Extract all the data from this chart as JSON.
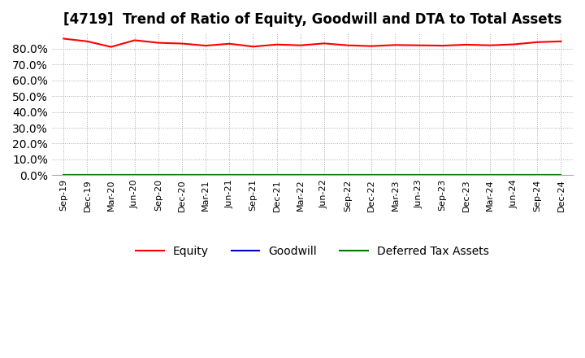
{
  "title": "[4719]  Trend of Ratio of Equity, Goodwill and DTA to Total Assets",
  "title_fontsize": 12,
  "background_color": "#ffffff",
  "grid_color": "#aaaaaa",
  "ylim": [
    0.0,
    0.9
  ],
  "yticks": [
    0.0,
    0.1,
    0.2,
    0.3,
    0.4,
    0.5,
    0.6,
    0.7,
    0.8
  ],
  "x_labels": [
    "Sep-19",
    "Dec-19",
    "Mar-20",
    "Jun-20",
    "Sep-20",
    "Dec-20",
    "Mar-21",
    "Jun-21",
    "Sep-21",
    "Dec-21",
    "Mar-22",
    "Jun-22",
    "Sep-22",
    "Dec-22",
    "Mar-23",
    "Jun-23",
    "Sep-23",
    "Dec-23",
    "Mar-24",
    "Jun-24",
    "Sep-24",
    "Dec-24"
  ],
  "equity": [
    0.862,
    0.845,
    0.81,
    0.852,
    0.836,
    0.831,
    0.818,
    0.83,
    0.812,
    0.825,
    0.82,
    0.832,
    0.82,
    0.815,
    0.822,
    0.82,
    0.818,
    0.824,
    0.82,
    0.826,
    0.84,
    0.845
  ],
  "goodwill": [
    0.0,
    0.0,
    0.0,
    0.0,
    0.0,
    0.0,
    0.0,
    0.0,
    0.0,
    0.0,
    0.0,
    0.0,
    0.0,
    0.0,
    0.0,
    0.0,
    0.0,
    0.0,
    0.0,
    0.0,
    0.0,
    0.0
  ],
  "dta": [
    0.0,
    0.0,
    0.0,
    0.0,
    0.0,
    0.0,
    0.0,
    0.0,
    0.0,
    0.0,
    0.0,
    0.0,
    0.0,
    0.0,
    0.0,
    0.0,
    0.0,
    0.0,
    0.0,
    0.0,
    0.0,
    0.0
  ],
  "equity_color": "#ff0000",
  "goodwill_color": "#0000cc",
  "dta_color": "#007700",
  "line_width": 1.5,
  "legend_labels": [
    "Equity",
    "Goodwill",
    "Deferred Tax Assets"
  ]
}
